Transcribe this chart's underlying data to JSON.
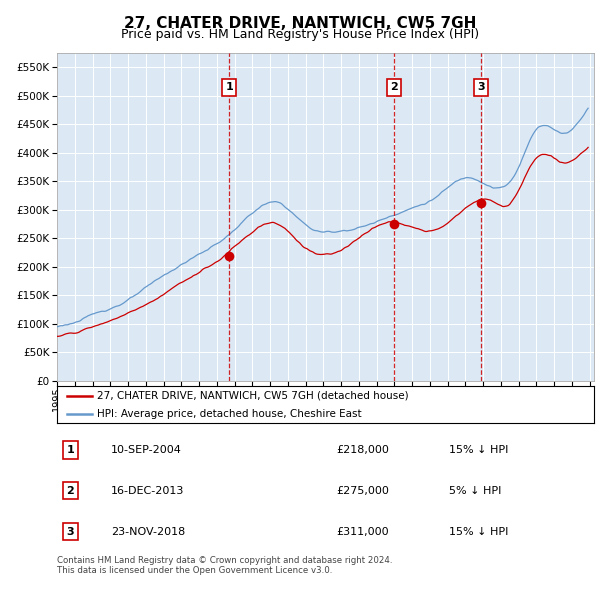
{
  "title": "27, CHATER DRIVE, NANTWICH, CW5 7GH",
  "subtitle": "Price paid vs. HM Land Registry's House Price Index (HPI)",
  "title_fontsize": 11,
  "subtitle_fontsize": 9,
  "bg_color": "#dce9f5",
  "line_color_property": "#cc0000",
  "line_color_hpi": "#6699cc",
  "ylim": [
    0,
    575000
  ],
  "yticks": [
    0,
    50000,
    100000,
    150000,
    200000,
    250000,
    300000,
    350000,
    400000,
    450000,
    500000,
    550000
  ],
  "transactions": [
    {
      "date": "2004-09-10",
      "price": 218000,
      "label": "1"
    },
    {
      "date": "2013-12-16",
      "price": 275000,
      "label": "2"
    },
    {
      "date": "2018-11-23",
      "price": 311000,
      "label": "3"
    }
  ],
  "legend_property": "27, CHATER DRIVE, NANTWICH, CW5 7GH (detached house)",
  "legend_hpi": "HPI: Average price, detached house, Cheshire East",
  "footer": "Contains HM Land Registry data © Crown copyright and database right 2024.\nThis data is licensed under the Open Government Licence v3.0.",
  "table_rows": [
    {
      "num": "1",
      "date": "10-SEP-2004",
      "price": "£218,000",
      "hpi": "15% ↓ HPI"
    },
    {
      "num": "2",
      "date": "16-DEC-2013",
      "price": "£275,000",
      "hpi": "5% ↓ HPI"
    },
    {
      "num": "3",
      "date": "23-NOV-2018",
      "price": "£311,000",
      "hpi": "15% ↓ HPI"
    }
  ]
}
